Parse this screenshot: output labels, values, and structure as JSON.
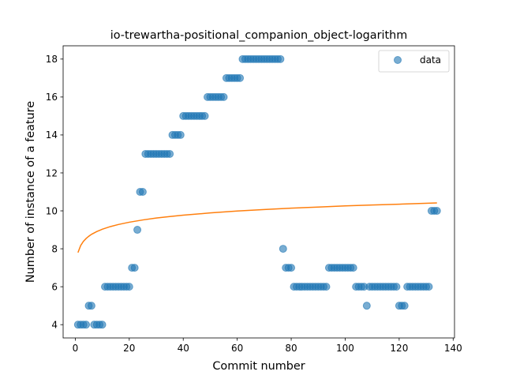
{
  "chart_data": {
    "type": "scatter",
    "title": "io-trewartha-positional_companion_object-logarithm",
    "xlabel": "Commit number",
    "ylabel": "Number of instance of a feature",
    "xlim": [
      -4.5,
      140.5
    ],
    "ylim": [
      3.3,
      18.7
    ],
    "xticks": [
      0,
      20,
      40,
      60,
      80,
      100,
      120,
      140
    ],
    "yticks": [
      4,
      6,
      8,
      10,
      12,
      14,
      16,
      18
    ],
    "grid": false,
    "legend": {
      "entries": [
        "data"
      ],
      "placement": "top-right"
    },
    "colors": {
      "data": "#1f77b4",
      "fit": "#ff7f0e"
    },
    "series": [
      {
        "name": "data",
        "kind": "scatter",
        "x": [
          1,
          2,
          3,
          4,
          5,
          6,
          7,
          8,
          9,
          10,
          11,
          12,
          13,
          14,
          15,
          16,
          17,
          18,
          19,
          20,
          21,
          22,
          23,
          24,
          25,
          26,
          27,
          28,
          29,
          30,
          31,
          32,
          33,
          34,
          35,
          36,
          37,
          38,
          39,
          40,
          41,
          42,
          43,
          44,
          45,
          46,
          47,
          48,
          49,
          50,
          51,
          52,
          53,
          54,
          55,
          56,
          57,
          58,
          59,
          60,
          61,
          62,
          63,
          64,
          65,
          66,
          67,
          68,
          69,
          70,
          71,
          72,
          73,
          74,
          75,
          76,
          77,
          78,
          79,
          80,
          81,
          82,
          83,
          84,
          85,
          86,
          87,
          88,
          89,
          90,
          91,
          92,
          93,
          94,
          95,
          96,
          97,
          98,
          99,
          100,
          101,
          102,
          103,
          104,
          105,
          106,
          107,
          108,
          109,
          110,
          111,
          112,
          113,
          114,
          115,
          116,
          117,
          118,
          119,
          120,
          121,
          122,
          123,
          124,
          125,
          126,
          127,
          128,
          129,
          130,
          131,
          132,
          133,
          134
        ],
        "y": [
          4,
          4,
          4,
          4,
          5,
          5,
          4,
          4,
          4,
          4,
          6,
          6,
          6,
          6,
          6,
          6,
          6,
          6,
          6,
          6,
          7,
          7,
          9,
          11,
          11,
          13,
          13,
          13,
          13,
          13,
          13,
          13,
          13,
          13,
          13,
          14,
          14,
          14,
          14,
          15,
          15,
          15,
          15,
          15,
          15,
          15,
          15,
          15,
          16,
          16,
          16,
          16,
          16,
          16,
          16,
          17,
          17,
          17,
          17,
          17,
          17,
          18,
          18,
          18,
          18,
          18,
          18,
          18,
          18,
          18,
          18,
          18,
          18,
          18,
          18,
          18,
          8,
          7,
          7,
          7,
          6,
          6,
          6,
          6,
          6,
          6,
          6,
          6,
          6,
          6,
          6,
          6,
          6,
          7,
          7,
          7,
          7,
          7,
          7,
          7,
          7,
          7,
          7,
          6,
          6,
          6,
          6,
          5,
          6,
          6,
          6,
          6,
          6,
          6,
          6,
          6,
          6,
          6,
          6,
          5,
          5,
          5,
          6,
          6,
          6,
          6,
          6,
          6,
          6,
          6,
          6,
          10,
          10,
          10
        ]
      },
      {
        "name": "",
        "kind": "line",
        "x": [
          1,
          2,
          3,
          4,
          5,
          6,
          8,
          10,
          13,
          16,
          20,
          25,
          30,
          35,
          40,
          50,
          60,
          70,
          80,
          90,
          100,
          110,
          120,
          134
        ],
        "y": [
          7.8,
          8.17,
          8.39,
          8.54,
          8.66,
          8.76,
          8.91,
          9.03,
          9.17,
          9.28,
          9.4,
          9.52,
          9.62,
          9.7,
          9.77,
          9.89,
          9.99,
          10.07,
          10.14,
          10.2,
          10.26,
          10.31,
          10.35,
          10.42
        ]
      }
    ]
  }
}
